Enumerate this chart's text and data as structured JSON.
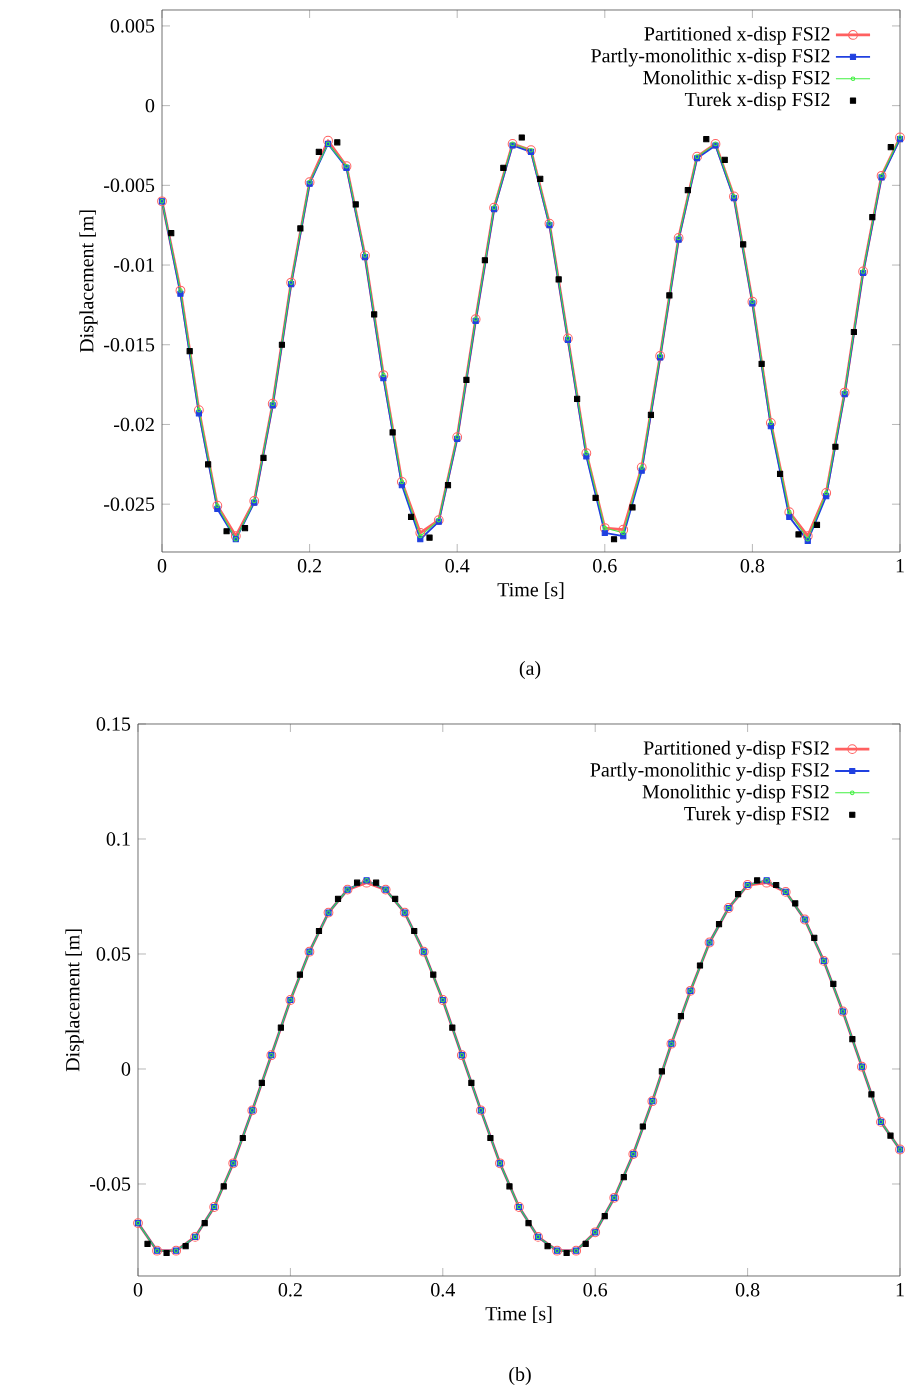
{
  "chart_data": [
    {
      "type": "line",
      "xlabel": "Time [s]",
      "ylabel": "Displacement [m]",
      "annotations": [
        "(a)"
      ],
      "x": [
        0,
        0.025,
        0.05,
        0.075,
        0.1,
        0.125,
        0.15,
        0.175,
        0.2,
        0.225,
        0.25,
        0.275,
        0.3,
        0.325,
        0.35,
        0.375,
        0.4,
        0.425,
        0.45,
        0.475,
        0.5,
        0.525,
        0.55,
        0.575,
        0.6,
        0.625,
        0.65,
        0.675,
        0.7,
        0.725,
        0.75,
        0.775,
        0.8,
        0.825,
        0.85,
        0.875,
        0.9,
        0.925,
        0.95,
        0.975,
        1
      ],
      "xlim": [
        0,
        1
      ],
      "xticks": [
        0,
        0.2,
        0.4,
        0.6,
        0.8,
        1
      ],
      "ylim": [
        -0.028,
        0.006
      ],
      "yticks": [
        0.005,
        0,
        -0.005,
        -0.01,
        -0.015,
        -0.02,
        -0.025
      ],
      "legend": "top right",
      "series": [
        {
          "name": "Partitioned x-disp FSI2",
          "color": "#ff6060",
          "marker": "circle",
          "values": [
            -0.006,
            -0.0116,
            -0.0191,
            -0.0251,
            -0.027,
            -0.0248,
            -0.0187,
            -0.0111,
            -0.0048,
            -0.0022,
            -0.0038,
            -0.0094,
            -0.0169,
            -0.0236,
            -0.0268,
            -0.026,
            -0.0208,
            -0.0134,
            -0.0064,
            -0.0024,
            -0.0028,
            -0.0074,
            -0.0146,
            -0.0218,
            -0.0265,
            -0.0266,
            -0.0227,
            -0.0157,
            -0.0083,
            -0.0032,
            -0.0024,
            -0.0057,
            -0.0123,
            -0.0199,
            -0.0255,
            -0.027,
            -0.0243,
            -0.018,
            -0.0104,
            -0.0044,
            -0.002
          ]
        },
        {
          "name": "Partly-monolithic x-disp FSI2",
          "color": "#2040e0",
          "marker": "square",
          "values": [
            -0.006,
            -0.0118,
            -0.0193,
            -0.0253,
            -0.0272,
            -0.0249,
            -0.0188,
            -0.0112,
            -0.0049,
            -0.0024,
            -0.0039,
            -0.0095,
            -0.0171,
            -0.0238,
            -0.0272,
            -0.0261,
            -0.0209,
            -0.0135,
            -0.0065,
            -0.0025,
            -0.0029,
            -0.0075,
            -0.0147,
            -0.022,
            -0.0268,
            -0.027,
            -0.0229,
            -0.0158,
            -0.0084,
            -0.0033,
            -0.0025,
            -0.0058,
            -0.0124,
            -0.0201,
            -0.0258,
            -0.0273,
            -0.0245,
            -0.0181,
            -0.0105,
            -0.0045,
            -0.0021
          ]
        },
        {
          "name": "Monolithic x-disp FSI2",
          "color": "#40f040",
          "marker": "circle",
          "values": [
            -0.006,
            -0.0116,
            -0.0191,
            -0.0251,
            -0.0272,
            -0.0248,
            -0.0187,
            -0.0111,
            -0.0048,
            -0.0024,
            -0.0038,
            -0.0094,
            -0.0169,
            -0.0236,
            -0.027,
            -0.026,
            -0.0208,
            -0.0134,
            -0.0064,
            -0.0024,
            -0.0028,
            -0.0074,
            -0.0146,
            -0.0218,
            -0.0265,
            -0.0268,
            -0.0227,
            -0.0157,
            -0.0083,
            -0.0032,
            -0.0024,
            -0.0057,
            -0.0123,
            -0.0199,
            -0.0255,
            -0.0272,
            -0.0243,
            -0.018,
            -0.0104,
            -0.0044,
            -0.002
          ]
        },
        {
          "name": "Turek x-disp FSI2",
          "type": "scatter",
          "color": "#000000",
          "marker": "square",
          "x": [
            0.0125,
            0.0375,
            0.0625,
            0.0875,
            0.1125,
            0.1375,
            0.1625,
            0.1875,
            0.2125,
            0.2375,
            0.2625,
            0.2875,
            0.3125,
            0.3375,
            0.3625,
            0.3875,
            0.4125,
            0.4375,
            0.4625,
            0.4875,
            0.5125,
            0.5375,
            0.5625,
            0.5875,
            0.6125,
            0.6375,
            0.6625,
            0.6875,
            0.7125,
            0.7375,
            0.7625,
            0.7875,
            0.8125,
            0.8375,
            0.8625,
            0.8875,
            0.9125,
            0.9375,
            0.9625,
            0.9875
          ],
          "values": [
            -0.008,
            -0.0154,
            -0.0225,
            -0.0267,
            -0.0265,
            -0.0221,
            -0.015,
            -0.0077,
            -0.0029,
            -0.0023,
            -0.0062,
            -0.0131,
            -0.0205,
            -0.0258,
            -0.0271,
            -0.0238,
            -0.0172,
            -0.0097,
            -0.0039,
            -0.002,
            -0.0046,
            -0.0109,
            -0.0184,
            -0.0246,
            -0.0272,
            -0.0252,
            -0.0194,
            -0.0119,
            -0.0053,
            -0.0021,
            -0.0034,
            -0.0087,
            -0.0162,
            -0.0231,
            -0.0269,
            -0.0263,
            -0.0214,
            -0.0142,
            -0.007,
            -0.0026
          ]
        }
      ]
    },
    {
      "type": "line",
      "xlabel": "Time [s]",
      "ylabel": "Displacement [m]",
      "annotations": [
        "(b)"
      ],
      "x": [
        0,
        0.025,
        0.05,
        0.075,
        0.1,
        0.125,
        0.15,
        0.175,
        0.2,
        0.225,
        0.25,
        0.275,
        0.3,
        0.325,
        0.35,
        0.375,
        0.4,
        0.425,
        0.45,
        0.475,
        0.5,
        0.525,
        0.55,
        0.575,
        0.6,
        0.625,
        0.65,
        0.675,
        0.7,
        0.725,
        0.75,
        0.775,
        0.8,
        0.825,
        0.85,
        0.875,
        0.9,
        0.925,
        0.95,
        0.975,
        1
      ],
      "xlim": [
        0,
        1
      ],
      "xticks": [
        0,
        0.2,
        0.4,
        0.6,
        0.8,
        1
      ],
      "ylim": [
        -0.09,
        0.15
      ],
      "yticks": [
        0.15,
        0.1,
        0.05,
        0,
        -0.05
      ],
      "legend": "top right",
      "series": [
        {
          "name": "Partitioned y-disp FSI2",
          "color": "#ff6060",
          "marker": "circle",
          "values": [
            -0.067,
            -0.079,
            -0.079,
            -0.073,
            -0.06,
            -0.041,
            -0.018,
            0.006,
            0.03,
            0.051,
            0.068,
            0.078,
            0.081,
            0.078,
            0.068,
            0.051,
            0.03,
            0.006,
            -0.018,
            -0.041,
            -0.06,
            -0.073,
            -0.079,
            -0.079,
            -0.071,
            -0.056,
            -0.037,
            -0.014,
            0.011,
            0.034,
            0.055,
            0.07,
            0.08,
            0.081,
            0.077,
            0.065,
            0.047,
            0.025,
            0.001,
            -0.023,
            -0.035
          ]
        },
        {
          "name": "Partly-monolithic y-disp FSI2",
          "color": "#2040e0",
          "marker": "square",
          "values": [
            -0.067,
            -0.079,
            -0.079,
            -0.073,
            -0.06,
            -0.041,
            -0.018,
            0.006,
            0.03,
            0.051,
            0.068,
            0.078,
            0.082,
            0.078,
            0.068,
            0.051,
            0.03,
            0.006,
            -0.018,
            -0.041,
            -0.06,
            -0.073,
            -0.079,
            -0.079,
            -0.071,
            -0.056,
            -0.037,
            -0.014,
            0.011,
            0.034,
            0.055,
            0.07,
            0.08,
            0.082,
            0.077,
            0.065,
            0.047,
            0.025,
            0.001,
            -0.023,
            -0.035
          ]
        },
        {
          "name": "Monolithic y-disp FSI2",
          "color": "#40f040",
          "marker": "circle",
          "values": [
            -0.067,
            -0.079,
            -0.079,
            -0.073,
            -0.06,
            -0.041,
            -0.018,
            0.006,
            0.03,
            0.051,
            0.068,
            0.078,
            0.082,
            0.078,
            0.068,
            0.051,
            0.03,
            0.006,
            -0.018,
            -0.041,
            -0.06,
            -0.073,
            -0.079,
            -0.079,
            -0.071,
            -0.056,
            -0.037,
            -0.014,
            0.011,
            0.034,
            0.055,
            0.07,
            0.08,
            0.082,
            0.077,
            0.065,
            0.047,
            0.025,
            0.001,
            -0.023,
            -0.035
          ]
        },
        {
          "name": "Turek y-disp FSI2",
          "type": "scatter",
          "color": "#000000",
          "marker": "square",
          "x": [
            0.0125,
            0.0375,
            0.0625,
            0.0875,
            0.1125,
            0.1375,
            0.1625,
            0.1875,
            0.2125,
            0.2375,
            0.2625,
            0.2875,
            0.3125,
            0.3375,
            0.3625,
            0.3875,
            0.4125,
            0.4375,
            0.4625,
            0.4875,
            0.5125,
            0.5375,
            0.5625,
            0.5875,
            0.6125,
            0.6375,
            0.6625,
            0.6875,
            0.7125,
            0.7375,
            0.7625,
            0.7875,
            0.8125,
            0.8375,
            0.8625,
            0.8875,
            0.9125,
            0.9375,
            0.9625,
            0.9875
          ],
          "values": [
            -0.076,
            -0.08,
            -0.077,
            -0.067,
            -0.051,
            -0.03,
            -0.006,
            0.018,
            0.041,
            0.06,
            0.074,
            0.081,
            0.081,
            0.074,
            0.06,
            0.041,
            0.018,
            -0.006,
            -0.03,
            -0.051,
            -0.067,
            -0.077,
            -0.08,
            -0.076,
            -0.064,
            -0.047,
            -0.025,
            -0.001,
            0.023,
            0.045,
            0.063,
            0.076,
            0.082,
            0.08,
            0.072,
            0.057,
            0.037,
            0.013,
            -0.011,
            -0.029
          ]
        }
      ]
    }
  ]
}
